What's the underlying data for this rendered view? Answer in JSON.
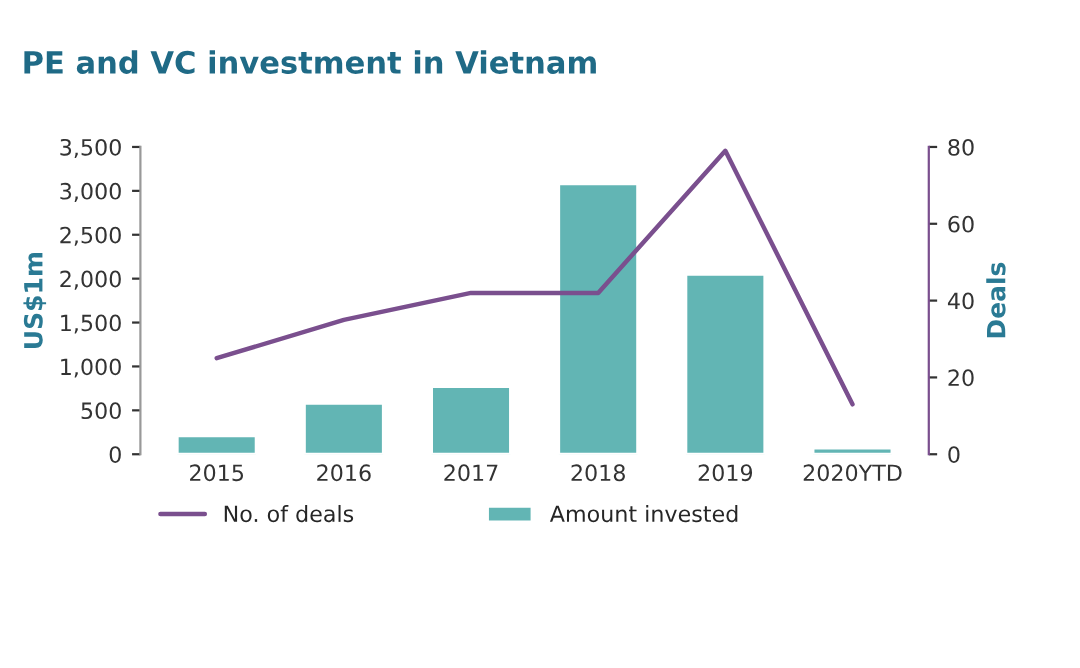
{
  "chart_data": {
    "type": "bar",
    "title": "PE and VC investment in Vietnam",
    "categories": [
      "2015",
      "2016",
      "2017",
      "2018",
      "2019",
      "2020YTD"
    ],
    "series": [
      {
        "name": "Amount invested",
        "color": "#62b5b4",
        "values": [
          210,
          580,
          770,
          3080,
          2050,
          70
        ]
      },
      {
        "name": "No. of deals",
        "type": "line",
        "axis": "y2",
        "color": "#7a4f8e",
        "values": [
          25,
          35,
          42,
          42,
          79,
          13
        ]
      }
    ],
    "ylabel": "US$1m",
    "y2label": "Deals",
    "ylim": [
      0,
      3500
    ],
    "yticks": [
      0,
      {
        "value": 500,
        "label": "500"
      },
      {
        "value": 1000,
        "label": "1,000"
      },
      {
        "value": 1500,
        "label": "1,500"
      },
      {
        "value": 2000,
        "label": "2,000"
      },
      {
        "value": 2500,
        "label": "2,500"
      },
      {
        "value": 3000,
        "label": "3,000"
      },
      {
        "value": 3500,
        "label": "3,500"
      }
    ],
    "y2lim": [
      0,
      80
    ],
    "y2ticks": [
      0,
      20,
      40,
      60,
      80
    ],
    "legend": "bottom",
    "grid": false,
    "marker": "none",
    "line_style": "solid"
  }
}
